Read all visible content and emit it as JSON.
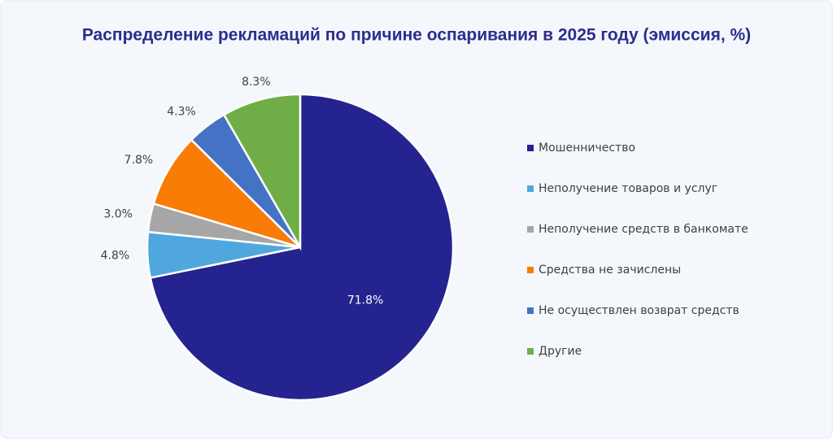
{
  "chart_data": {
    "type": "pie",
    "title": "Распределение рекламаций по причине оспаривания в 2025 году (эмиссия, %)",
    "categories": [
      "Мошенничество",
      "Неполучение товаров и услуг",
      "Неполучение средств в банкомате",
      "Средства не зачислены",
      "Не осуществлен возврат средств",
      "Другие"
    ],
    "values": [
      71.8,
      4.8,
      3.0,
      7.8,
      4.3,
      8.3
    ],
    "value_labels": [
      "71.8%",
      "4.8%",
      "3.0%",
      "7.8%",
      "4.3%",
      "8.3%"
    ],
    "colors": [
      "#24238f",
      "#4fa7dd",
      "#a6a6a6",
      "#f97c07",
      "#4473c5",
      "#70ad47"
    ],
    "legend": "right"
  }
}
